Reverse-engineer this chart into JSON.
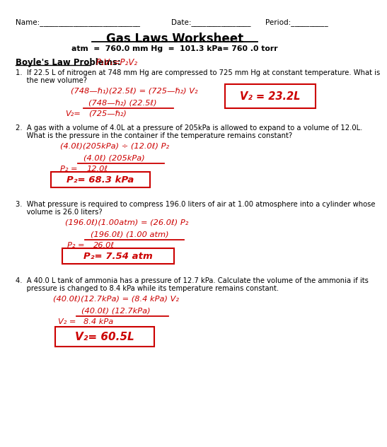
{
  "title": "Gas Laws Worksheet",
  "subtitle": "atm  =  760.0 mm Hg  =  101.3 kPa= 760 .0 torr",
  "header_left": "Name:___________________________",
  "header_date": "Date:________________",
  "header_period": "Period:__________",
  "section": "Boyle's Law Problems:",
  "section_formula": "P₁V₁=P₂V₂",
  "q1_text1": "1.  If 22.5 L of nitrogen at 748 mm Hg are compressed to 725 mm Hg at constant temperature. What is",
  "q1_text2": "     the new volume?",
  "q1_w1": "(748—ℏ₁)(22.5ℓ) = (725—ℏ₂) V₂",
  "q1_w2": "(748—ℏ₂) (22.5ℓ)",
  "q1_w3a": "V₂=",
  "q1_w3b": "(725—ℏ₂)",
  "q1_ans": "V₂ = 23.2L",
  "q2_text1": "2.  A gas with a volume of 4.0L at a pressure of 205kPa is allowed to expand to a volume of 12.0L.",
  "q2_text2": "     What is the pressure in the container if the temperature remains constant?",
  "q2_w1": "(4.0ℓ)(205kPa) ÷ (12.0ℓ) P₂",
  "q2_w2": "(4.0ℓ) (205kPa)",
  "q2_w3a": "P₂ =",
  "q2_w3b": "12.0ℓ",
  "q2_ans": "P₂= 68.3 kPa",
  "q3_text1": "3.  What pressure is required to compress 196.0 liters of air at 1.00 atmosphere into a cylinder whose",
  "q3_text2": "     volume is 26.0 liters?",
  "q3_w1": "(196.0ℓ)(1.00atm) = (26.0ℓ) P₂",
  "q3_w2": "(196.0ℓ) (1.00 atm)",
  "q3_w3a": "P₂ =",
  "q3_w3b": "26.0ℓ",
  "q3_ans": "P₂= 7.54 atm",
  "q4_text1": "4.  A 40.0 L tank of ammonia has a pressure of 12.7 kPa. Calculate the volume of the ammonia if its",
  "q4_text2": "     pressure is changed to 8.4 kPa while its temperature remains constant.",
  "q4_w1": "(40.0ℓ)(12.7kPa) = (8.4 kPa) V₂",
  "q4_w2": "(40.0ℓ) (12.7kPa)",
  "q4_w3a": "V₂ =",
  "q4_w3b": "8.4 kPa",
  "q4_ans": "V₂= 60.5L",
  "red": "#cc0000",
  "black": "#000000",
  "bg": "#ffffff"
}
